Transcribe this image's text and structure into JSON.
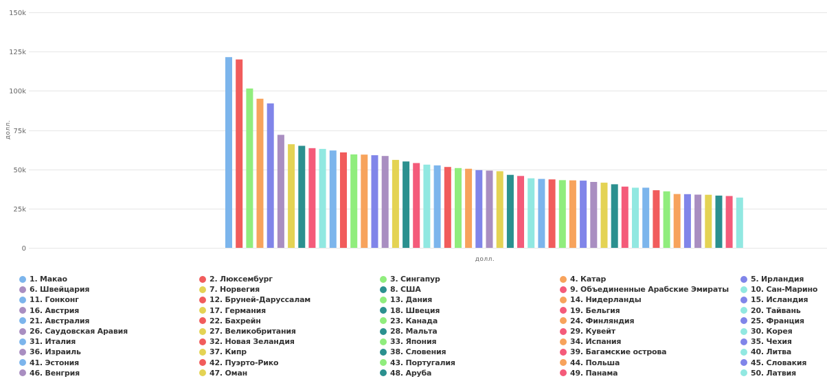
{
  "chart_data": {
    "type": "bar",
    "title": "",
    "xlabel": "долл.",
    "ylabel": "долл.",
    "ylim": [
      0,
      150000
    ],
    "yticks": [
      0,
      25000,
      50000,
      75000,
      100000,
      125000,
      150000
    ],
    "ytick_labels": [
      "0",
      "25k",
      "50k",
      "75k",
      "100k",
      "125k",
      "150k"
    ],
    "grid": true,
    "legend_position": "bottom",
    "series": [
      {
        "name": "1. Макао",
        "value": 121500,
        "color": "#7cb5ec"
      },
      {
        "name": "2. Люксембург",
        "value": 120000,
        "color": "#f15c5c"
      },
      {
        "name": "3. Сингапур",
        "value": 101500,
        "color": "#90ed7d"
      },
      {
        "name": "4. Катар",
        "value": 95000,
        "color": "#f7a35c"
      },
      {
        "name": "5. Ирландия",
        "value": 92000,
        "color": "#8085e9"
      },
      {
        "name": "6. Швейцария",
        "value": 72000,
        "color": "#a98ec1"
      },
      {
        "name": "7. Норвегия",
        "value": 66000,
        "color": "#e4d354"
      },
      {
        "name": "8. США",
        "value": 65000,
        "color": "#2b908f"
      },
      {
        "name": "9. Объединенные Арабские Эмираты",
        "value": 63500,
        "color": "#f45b7a"
      },
      {
        "name": "10. Сан-Марино",
        "value": 63000,
        "color": "#91e8e1"
      },
      {
        "name": "11. Гонконг",
        "value": 62000,
        "color": "#7cb5ec"
      },
      {
        "name": "12. Бруней-Даруссалам",
        "value": 60800,
        "color": "#f15c5c"
      },
      {
        "name": "13. Дания",
        "value": 59500,
        "color": "#90ed7d"
      },
      {
        "name": "14. Нидерланды",
        "value": 59400,
        "color": "#f7a35c"
      },
      {
        "name": "15. Исландия",
        "value": 59000,
        "color": "#8085e9"
      },
      {
        "name": "16. Австрия",
        "value": 58500,
        "color": "#a98ec1"
      },
      {
        "name": "17. Германия",
        "value": 56000,
        "color": "#e4d354"
      },
      {
        "name": "18. Швеция",
        "value": 55000,
        "color": "#2b908f"
      },
      {
        "name": "19. Бельгия",
        "value": 54000,
        "color": "#f45b7a"
      },
      {
        "name": "20. Тайвань",
        "value": 53000,
        "color": "#91e8e1"
      },
      {
        "name": "21. Австралия",
        "value": 52500,
        "color": "#7cb5ec"
      },
      {
        "name": "22. Бахрейн",
        "value": 51500,
        "color": "#f15c5c"
      },
      {
        "name": "23. Канада",
        "value": 50800,
        "color": "#90ed7d"
      },
      {
        "name": "24. Финляндия",
        "value": 50400,
        "color": "#f7a35c"
      },
      {
        "name": "25. Франция",
        "value": 49500,
        "color": "#8085e9"
      },
      {
        "name": "26. Саудовская Аравия",
        "value": 49200,
        "color": "#a98ec1"
      },
      {
        "name": "27. Великобритания",
        "value": 48800,
        "color": "#e4d354"
      },
      {
        "name": "28. Мальта",
        "value": 46500,
        "color": "#2b908f"
      },
      {
        "name": "29. Кувейт",
        "value": 45800,
        "color": "#f45b7a"
      },
      {
        "name": "30. Корея",
        "value": 44300,
        "color": "#91e8e1"
      },
      {
        "name": "31. Италия",
        "value": 43900,
        "color": "#7cb5ec"
      },
      {
        "name": "32. Новая Зеландия",
        "value": 43600,
        "color": "#f15c5c"
      },
      {
        "name": "33. Япония",
        "value": 43100,
        "color": "#90ed7d"
      },
      {
        "name": "34. Испания",
        "value": 43000,
        "color": "#f7a35c"
      },
      {
        "name": "35. Чехия",
        "value": 42800,
        "color": "#8085e9"
      },
      {
        "name": "36. Израиль",
        "value": 42000,
        "color": "#a98ec1"
      },
      {
        "name": "37. Кипр",
        "value": 41500,
        "color": "#e4d354"
      },
      {
        "name": "38. Словения",
        "value": 40500,
        "color": "#2b908f"
      },
      {
        "name": "39. Багамские острова",
        "value": 39000,
        "color": "#f45b7a"
      },
      {
        "name": "40. Литва",
        "value": 38300,
        "color": "#91e8e1"
      },
      {
        "name": "41. Эстония",
        "value": 38300,
        "color": "#7cb5ec"
      },
      {
        "name": "42. Пуэрто-Рико",
        "value": 36700,
        "color": "#f15c5c"
      },
      {
        "name": "43. Португалия",
        "value": 36000,
        "color": "#90ed7d"
      },
      {
        "name": "44. Польша",
        "value": 34300,
        "color": "#f7a35c"
      },
      {
        "name": "45. Словакия",
        "value": 34200,
        "color": "#8085e9"
      },
      {
        "name": "46. Венгрия",
        "value": 33900,
        "color": "#a98ec1"
      },
      {
        "name": "47. Оман",
        "value": 33800,
        "color": "#e4d354"
      },
      {
        "name": "48. Аруба",
        "value": 33300,
        "color": "#2b908f"
      },
      {
        "name": "49. Панама",
        "value": 33000,
        "color": "#f45b7a"
      },
      {
        "name": "50. Латвия",
        "value": 32000,
        "color": "#91e8e1"
      }
    ]
  }
}
